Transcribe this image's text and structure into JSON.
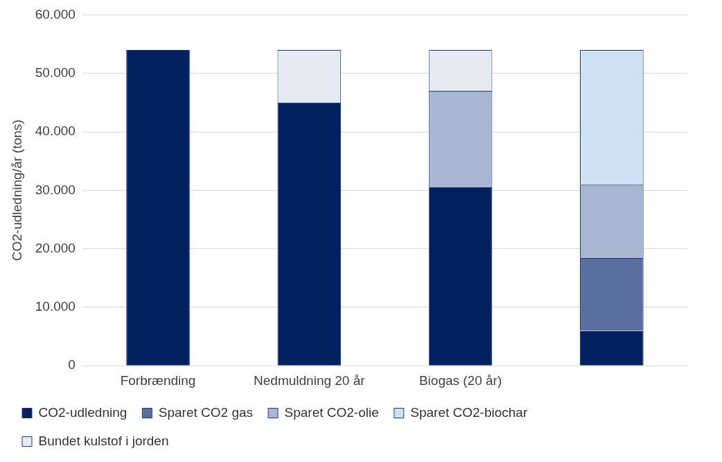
{
  "chart_data": {
    "type": "bar",
    "stacked": true,
    "ylabel": "CO2-udledning/år (tons)",
    "categories": [
      "Forbrænding",
      "Nedmuldning 20 år",
      "Biogas (20 år)",
      null
    ],
    "series": [
      {
        "name": "CO2-udledning",
        "color": "#002060",
        "values": [
          54000,
          45000,
          30500,
          6000
        ]
      },
      {
        "name": "Sparet CO2 gas",
        "color": "#5b6f9e",
        "values": [
          0,
          0,
          0,
          12400
        ]
      },
      {
        "name": "Sparet CO2-olie",
        "color": "#a9b6d2",
        "values": [
          0,
          0,
          16500,
          12600
        ]
      },
      {
        "name": "Sparet CO2-biochar",
        "color": "#cfe0f3",
        "values": [
          0,
          0,
          0,
          23000
        ]
      },
      {
        "name": "Bundet kulstof i jorden",
        "color": "#e6eaf3",
        "values": [
          0,
          9000,
          7000,
          0
        ]
      }
    ],
    "ylim": [
      0,
      60000
    ],
    "yticks": [
      {
        "value": 0,
        "label": "0"
      },
      {
        "value": 10000,
        "label": "10.000"
      },
      {
        "value": 20000,
        "label": "20.000"
      },
      {
        "value": 30000,
        "label": "30.000"
      },
      {
        "value": 40000,
        "label": "40.000"
      },
      {
        "value": 50000,
        "label": "50.000"
      },
      {
        "value": 60000,
        "label": "60.000"
      }
    ],
    "grid": "y",
    "legend": "bottom"
  }
}
